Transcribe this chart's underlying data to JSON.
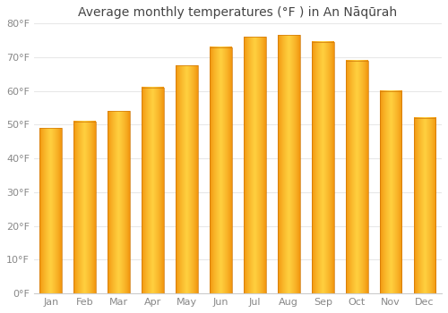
{
  "title": "Average monthly temperatures (°F ) in An Nāqūrah",
  "months": [
    "Jan",
    "Feb",
    "Mar",
    "Apr",
    "May",
    "Jun",
    "Jul",
    "Aug",
    "Sep",
    "Oct",
    "Nov",
    "Dec"
  ],
  "values": [
    49,
    51,
    54,
    61,
    67.5,
    73,
    76,
    76.5,
    74.5,
    69,
    60,
    52
  ],
  "bar_color_center": "#FFD040",
  "bar_color_edge": "#F0900A",
  "ylim": [
    0,
    80
  ],
  "yticks": [
    0,
    10,
    20,
    30,
    40,
    50,
    60,
    70,
    80
  ],
  "ytick_labels": [
    "0°F",
    "10°F",
    "20°F",
    "30°F",
    "40°F",
    "50°F",
    "60°F",
    "70°F",
    "80°F"
  ],
  "background_color": "#ffffff",
  "grid_color": "#e8e8e8",
  "title_fontsize": 10,
  "tick_fontsize": 8,
  "tick_color": "#888888",
  "title_color": "#444444"
}
